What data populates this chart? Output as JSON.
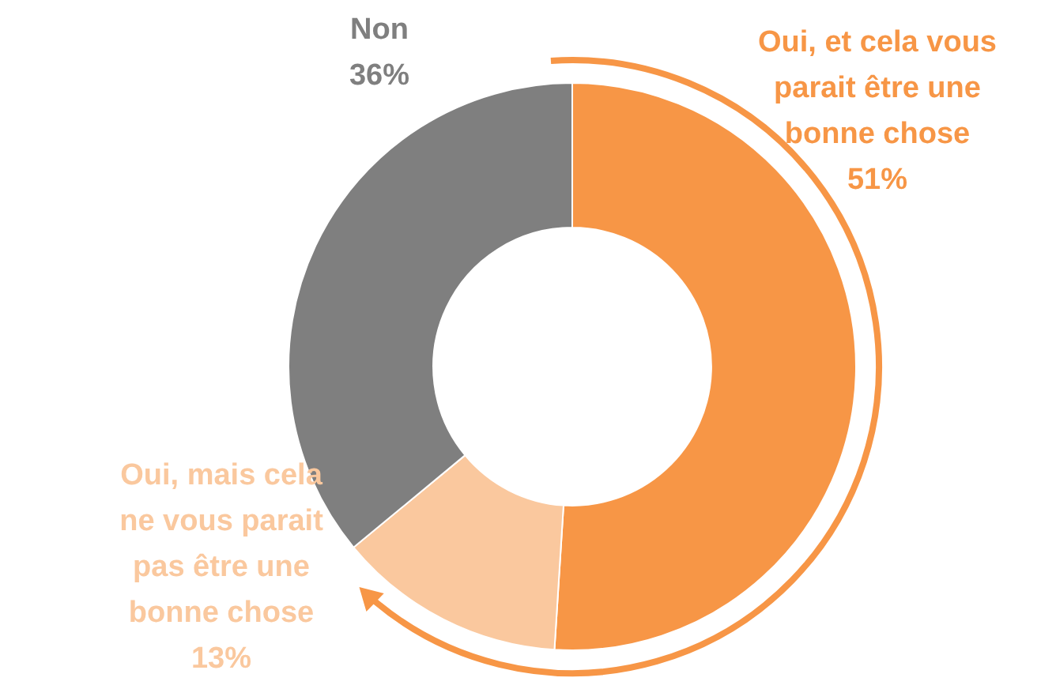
{
  "chart_data": {
    "type": "donut",
    "categories": [
      "Oui, et cela vous parait être une bonne chose",
      "Oui, mais cela ne vous parait pas être une bonne chose",
      "Non"
    ],
    "values": [
      51,
      13,
      36
    ],
    "value_labels": [
      "51%",
      "13%",
      "36%"
    ],
    "colors": [
      "#f79646",
      "#fac89e",
      "#7f7f7f"
    ],
    "legend": false
  }
}
